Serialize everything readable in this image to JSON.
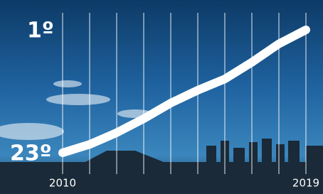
{
  "chart_data": {
    "type": "line",
    "x": [
      2010,
      2011,
      2012,
      2013,
      2014,
      2015,
      2016,
      2017,
      2018,
      2019
    ],
    "series": [
      {
        "color": "#ffffff",
        "values": [
          23,
          21.5,
          19.4,
          16.9,
          14.1,
          11.8,
          9.8,
          6.8,
          3.5,
          1
        ]
      }
    ],
    "xlim": [
      2010,
      2019
    ],
    "xticks": [
      2010,
      2019
    ],
    "ylim": [
      23,
      1
    ],
    "yticks": [
      {
        "value": 23,
        "label": "23º"
      },
      {
        "value": 1,
        "label": "1º"
      }
    ],
    "grid": true
  }
}
